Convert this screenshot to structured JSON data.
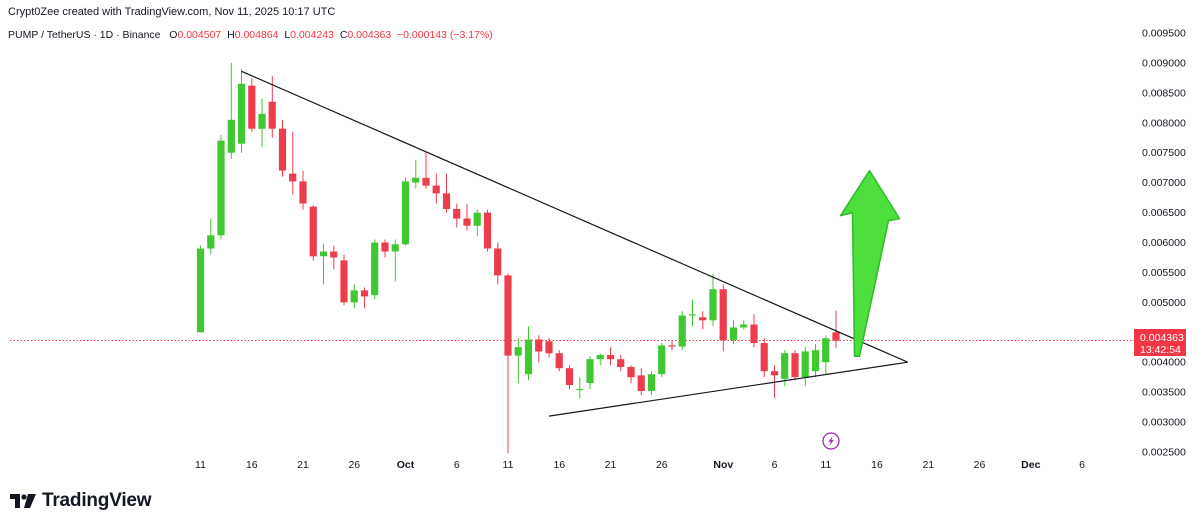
{
  "header": {
    "author_line": "Crypt0Zee created with TradingView.com, Nov 11, 2025 10:17 UTC",
    "symbol": "PUMP / TetherUS · 1D · Binance",
    "o_label": "O",
    "o_value": "0.004507",
    "h_label": "H",
    "h_value": "0.004864",
    "l_label": "L",
    "l_value": "0.004243",
    "c_label": "C",
    "c_value": "0.004363",
    "change": "−0.000143 (−3.17%)"
  },
  "price_label": {
    "price": "0.004363",
    "countdown": "13:42:54"
  },
  "brand": {
    "name": "TradingView"
  },
  "icons": {
    "bolt": "lightning-bolt-icon",
    "logo": "tradingview-logo-icon",
    "arrow": "up-arrow-icon"
  },
  "colors": {
    "up": "#3fc832",
    "down": "#ec3d4d",
    "price_line": "#f23645",
    "trendline": "#131722",
    "arrow": "#4de03c"
  },
  "chart_data": {
    "type": "candlestick",
    "title": "",
    "xlabel": "",
    "ylabel": "",
    "ylim": [
      0.00245,
      0.0098
    ],
    "yticks": [
      "0.002500",
      "0.003000",
      "0.003500",
      "0.004000",
      "0.004500",
      "0.005000",
      "0.005500",
      "0.006000",
      "0.006500",
      "0.007000",
      "0.007500",
      "0.008000",
      "0.008500",
      "0.009000",
      "0.009500"
    ],
    "xrange_days": [
      "2025-09-07",
      "2025-12-08"
    ],
    "xticks": [
      {
        "date": "2025-09-11",
        "label": "11"
      },
      {
        "date": "2025-09-16",
        "label": "16"
      },
      {
        "date": "2025-09-21",
        "label": "21"
      },
      {
        "date": "2025-09-26",
        "label": "26"
      },
      {
        "date": "2025-10-01",
        "label": "Oct",
        "bold": true
      },
      {
        "date": "2025-10-06",
        "label": "6"
      },
      {
        "date": "2025-10-11",
        "label": "11"
      },
      {
        "date": "2025-10-16",
        "label": "16"
      },
      {
        "date": "2025-10-21",
        "label": "21"
      },
      {
        "date": "2025-10-26",
        "label": "26"
      },
      {
        "date": "2025-11-01",
        "label": "Nov",
        "bold": true
      },
      {
        "date": "2025-11-06",
        "label": "6"
      },
      {
        "date": "2025-11-11",
        "label": "11"
      },
      {
        "date": "2025-11-16",
        "label": "16"
      },
      {
        "date": "2025-11-21",
        "label": "21"
      },
      {
        "date": "2025-11-26",
        "label": "26"
      },
      {
        "date": "2025-12-01",
        "label": "Dec",
        "bold": true
      },
      {
        "date": "2025-12-06",
        "label": "6"
      }
    ],
    "current_price": 0.004363,
    "candles": [
      {
        "d": "2025-09-11",
        "o": 0.0045,
        "h": 0.00595,
        "l": 0.0045,
        "c": 0.0059
      },
      {
        "d": "2025-09-12",
        "o": 0.0059,
        "h": 0.0064,
        "l": 0.0058,
        "c": 0.00612
      },
      {
        "d": "2025-09-13",
        "o": 0.00612,
        "h": 0.0078,
        "l": 0.00605,
        "c": 0.0077
      },
      {
        "d": "2025-09-14",
        "o": 0.0075,
        "h": 0.009,
        "l": 0.0074,
        "c": 0.00805
      },
      {
        "d": "2025-09-15",
        "o": 0.00765,
        "h": 0.0089,
        "l": 0.0075,
        "c": 0.00865
      },
      {
        "d": "2025-09-16",
        "o": 0.00862,
        "h": 0.00875,
        "l": 0.00785,
        "c": 0.0079
      },
      {
        "d": "2025-09-17",
        "o": 0.0079,
        "h": 0.0084,
        "l": 0.0076,
        "c": 0.00815
      },
      {
        "d": "2025-09-18",
        "o": 0.00835,
        "h": 0.00878,
        "l": 0.00775,
        "c": 0.0079
      },
      {
        "d": "2025-09-19",
        "o": 0.0079,
        "h": 0.00805,
        "l": 0.0071,
        "c": 0.0072
      },
      {
        "d": "2025-09-20",
        "o": 0.00715,
        "h": 0.00785,
        "l": 0.0068,
        "c": 0.00702
      },
      {
        "d": "2025-09-21",
        "o": 0.00702,
        "h": 0.0072,
        "l": 0.00655,
        "c": 0.00665
      },
      {
        "d": "2025-09-22",
        "o": 0.0066,
        "h": 0.00662,
        "l": 0.0057,
        "c": 0.00577
      },
      {
        "d": "2025-09-23",
        "o": 0.00577,
        "h": 0.00598,
        "l": 0.0053,
        "c": 0.00585
      },
      {
        "d": "2025-09-24",
        "o": 0.00585,
        "h": 0.00595,
        "l": 0.00555,
        "c": 0.00575
      },
      {
        "d": "2025-09-25",
        "o": 0.0057,
        "h": 0.0058,
        "l": 0.00495,
        "c": 0.005
      },
      {
        "d": "2025-09-26",
        "o": 0.005,
        "h": 0.0053,
        "l": 0.0049,
        "c": 0.0052
      },
      {
        "d": "2025-09-27",
        "o": 0.0052,
        "h": 0.00525,
        "l": 0.0049,
        "c": 0.0051
      },
      {
        "d": "2025-09-28",
        "o": 0.00512,
        "h": 0.00605,
        "l": 0.00505,
        "c": 0.006
      },
      {
        "d": "2025-09-29",
        "o": 0.006,
        "h": 0.00605,
        "l": 0.00575,
        "c": 0.00585
      },
      {
        "d": "2025-09-30",
        "o": 0.00585,
        "h": 0.00605,
        "l": 0.00535,
        "c": 0.00597
      },
      {
        "d": "2025-10-01",
        "o": 0.00597,
        "h": 0.00708,
        "l": 0.00595,
        "c": 0.00702
      },
      {
        "d": "2025-10-02",
        "o": 0.007,
        "h": 0.00738,
        "l": 0.0069,
        "c": 0.00708
      },
      {
        "d": "2025-10-03",
        "o": 0.00708,
        "h": 0.0075,
        "l": 0.0069,
        "c": 0.00695
      },
      {
        "d": "2025-10-04",
        "o": 0.00695,
        "h": 0.00715,
        "l": 0.00665,
        "c": 0.00682
      },
      {
        "d": "2025-10-05",
        "o": 0.00682,
        "h": 0.00715,
        "l": 0.0065,
        "c": 0.00656
      },
      {
        "d": "2025-10-06",
        "o": 0.00656,
        "h": 0.00665,
        "l": 0.00625,
        "c": 0.0064
      },
      {
        "d": "2025-10-07",
        "o": 0.0064,
        "h": 0.00665,
        "l": 0.0062,
        "c": 0.00628
      },
      {
        "d": "2025-10-08",
        "o": 0.00628,
        "h": 0.00655,
        "l": 0.0061,
        "c": 0.0065
      },
      {
        "d": "2025-10-09",
        "o": 0.0065,
        "h": 0.00655,
        "l": 0.00585,
        "c": 0.0059
      },
      {
        "d": "2025-10-10",
        "o": 0.0059,
        "h": 0.006,
        "l": 0.0053,
        "c": 0.00545
      },
      {
        "d": "2025-10-11",
        "o": 0.00545,
        "h": 0.00548,
        "l": 0.00248,
        "c": 0.00411
      },
      {
        "d": "2025-10-12",
        "o": 0.00411,
        "h": 0.0044,
        "l": 0.00365,
        "c": 0.00425
      },
      {
        "d": "2025-10-13",
        "o": 0.0038,
        "h": 0.0046,
        "l": 0.0037,
        "c": 0.00438
      },
      {
        "d": "2025-10-14",
        "o": 0.00438,
        "h": 0.00445,
        "l": 0.004,
        "c": 0.00418
      },
      {
        "d": "2025-10-15",
        "o": 0.00435,
        "h": 0.0044,
        "l": 0.00408,
        "c": 0.00415
      },
      {
        "d": "2025-10-16",
        "o": 0.00415,
        "h": 0.0042,
        "l": 0.00385,
        "c": 0.0039
      },
      {
        "d": "2025-10-17",
        "o": 0.0039,
        "h": 0.00395,
        "l": 0.00355,
        "c": 0.00362
      },
      {
        "d": "2025-10-18",
        "o": 0.00355,
        "h": 0.00375,
        "l": 0.0034,
        "c": 0.00355
      },
      {
        "d": "2025-10-19",
        "o": 0.00365,
        "h": 0.0041,
        "l": 0.00355,
        "c": 0.00405
      },
      {
        "d": "2025-10-20",
        "o": 0.00405,
        "h": 0.00415,
        "l": 0.00395,
        "c": 0.00412
      },
      {
        "d": "2025-10-21",
        "o": 0.00412,
        "h": 0.00425,
        "l": 0.00395,
        "c": 0.00405
      },
      {
        "d": "2025-10-22",
        "o": 0.00405,
        "h": 0.00412,
        "l": 0.00385,
        "c": 0.00392
      },
      {
        "d": "2025-10-23",
        "o": 0.00392,
        "h": 0.00395,
        "l": 0.00365,
        "c": 0.00375
      },
      {
        "d": "2025-10-24",
        "o": 0.00378,
        "h": 0.0039,
        "l": 0.00345,
        "c": 0.00352
      },
      {
        "d": "2025-10-25",
        "o": 0.00352,
        "h": 0.00385,
        "l": 0.00345,
        "c": 0.0038
      },
      {
        "d": "2025-10-26",
        "o": 0.0038,
        "h": 0.00432,
        "l": 0.00375,
        "c": 0.00428
      },
      {
        "d": "2025-10-27",
        "o": 0.00428,
        "h": 0.00435,
        "l": 0.0042,
        "c": 0.00426
      },
      {
        "d": "2025-10-28",
        "o": 0.00426,
        "h": 0.00485,
        "l": 0.0042,
        "c": 0.00478
      },
      {
        "d": "2025-10-29",
        "o": 0.00478,
        "h": 0.00505,
        "l": 0.0046,
        "c": 0.0048
      },
      {
        "d": "2025-10-30",
        "o": 0.00475,
        "h": 0.00485,
        "l": 0.00455,
        "c": 0.0047
      },
      {
        "d": "2025-10-31",
        "o": 0.0047,
        "h": 0.00548,
        "l": 0.0046,
        "c": 0.00522
      },
      {
        "d": "2025-11-01",
        "o": 0.00522,
        "h": 0.0053,
        "l": 0.00418,
        "c": 0.00437
      },
      {
        "d": "2025-11-02",
        "o": 0.00437,
        "h": 0.0047,
        "l": 0.0043,
        "c": 0.00458
      },
      {
        "d": "2025-11-03",
        "o": 0.00458,
        "h": 0.0047,
        "l": 0.00455,
        "c": 0.00463
      },
      {
        "d": "2025-11-04",
        "o": 0.00463,
        "h": 0.0048,
        "l": 0.00425,
        "c": 0.00432
      },
      {
        "d": "2025-11-05",
        "o": 0.00432,
        "h": 0.0044,
        "l": 0.00375,
        "c": 0.00385
      },
      {
        "d": "2025-11-06",
        "o": 0.00385,
        "h": 0.00395,
        "l": 0.0034,
        "c": 0.00378
      },
      {
        "d": "2025-11-07",
        "o": 0.00372,
        "h": 0.0042,
        "l": 0.0036,
        "c": 0.00415
      },
      {
        "d": "2025-11-08",
        "o": 0.00415,
        "h": 0.0042,
        "l": 0.0037,
        "c": 0.00375
      },
      {
        "d": "2025-11-09",
        "o": 0.00375,
        "h": 0.00425,
        "l": 0.0036,
        "c": 0.00418
      },
      {
        "d": "2025-11-10",
        "o": 0.00385,
        "h": 0.0043,
        "l": 0.00375,
        "c": 0.0042
      },
      {
        "d": "2025-11-11",
        "o": 0.004,
        "h": 0.00445,
        "l": 0.0038,
        "c": 0.0044
      },
      {
        "d": "2025-11-12",
        "o": 0.0045,
        "h": 0.00486,
        "l": 0.00424,
        "c": 0.00436
      }
    ],
    "annotations": [
      {
        "type": "trendline",
        "from": {
          "d": "2025-09-15",
          "p": 0.00886
        },
        "to": {
          "d": "2025-11-19",
          "p": 0.004
        }
      },
      {
        "type": "trendline",
        "from": {
          "d": "2025-10-15",
          "p": 0.0031
        },
        "to": {
          "d": "2025-11-19",
          "p": 0.004
        }
      },
      {
        "type": "arrow",
        "direction": "up",
        "from": {
          "d": "2025-11-14",
          "p": 0.0041
        },
        "to": {
          "d": "2025-11-14",
          "p": 0.0072
        }
      }
    ]
  }
}
